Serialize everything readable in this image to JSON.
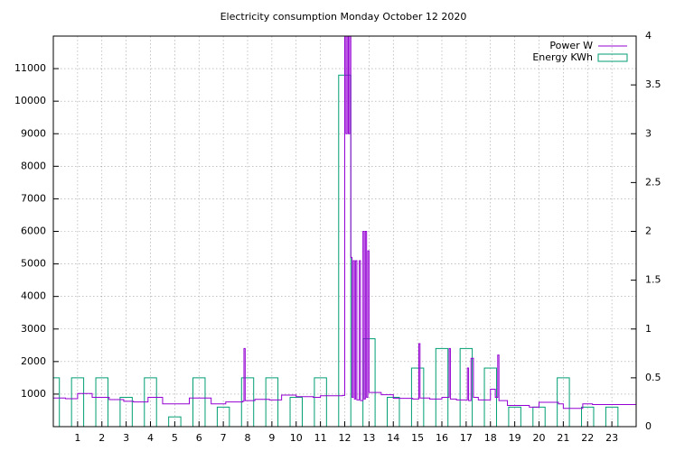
{
  "chart_data": {
    "type": "line",
    "title": "Electricity consumption Monday October 12 2020",
    "xlim": [
      0,
      24
    ],
    "xticks": [
      1,
      2,
      3,
      4,
      5,
      6,
      7,
      8,
      9,
      10,
      11,
      12,
      13,
      14,
      15,
      16,
      17,
      18,
      19,
      20,
      21,
      22,
      23
    ],
    "ylim": [
      0,
      12000
    ],
    "yticks": [
      1000,
      2000,
      3000,
      4000,
      5000,
      6000,
      7000,
      8000,
      9000,
      10000,
      11000
    ],
    "y2lim": [
      0,
      4
    ],
    "y2ticks": [
      0,
      0.5,
      1,
      1.5,
      2,
      2.5,
      3,
      3.5,
      4
    ],
    "grid": true,
    "legend": "top-right",
    "series": [
      {
        "name": "Power W",
        "color": "#9400d3",
        "style": "steps",
        "x": [
          0,
          0.5,
          1,
          1.6,
          2.3,
          2.9,
          3.3,
          3.9,
          4.5,
          5.6,
          6.5,
          7.1,
          7.8,
          7.85,
          7.9,
          8.3,
          8.9,
          9.4,
          10,
          10.7,
          11,
          11.9,
          12.0,
          12.05,
          12.1,
          12.15,
          12.2,
          12.25,
          12.3,
          12.35,
          12.4,
          12.45,
          12.5,
          12.6,
          12.65,
          12.75,
          12.8,
          12.85,
          12.9,
          12.95,
          13.0,
          13.5,
          14.0,
          14.8,
          15.05,
          15.1,
          15.5,
          16.0,
          16.3,
          16.35,
          16.6,
          17.0,
          17.05,
          17.1,
          17.2,
          17.3,
          17.5,
          18.0,
          18.2,
          18.3,
          18.35,
          18.7,
          19.6,
          20.0,
          20.8,
          21.0,
          21.8,
          22.2,
          24
        ],
        "values": [
          880,
          860,
          1020,
          900,
          830,
          780,
          760,
          900,
          700,
          880,
          700,
          760,
          780,
          2400,
          800,
          840,
          820,
          970,
          920,
          900,
          950,
          960,
          12000,
          9000,
          12000,
          9000,
          12000,
          5200,
          900,
          5100,
          850,
          5100,
          820,
          5100,
          800,
          6000,
          850,
          6000,
          900,
          5400,
          1050,
          980,
          870,
          850,
          2550,
          880,
          850,
          900,
          2400,
          850,
          820,
          820,
          1800,
          800,
          2100,
          900,
          820,
          1150,
          900,
          2200,
          800,
          650,
          600,
          750,
          700,
          560,
          700,
          680,
          680
        ]
      },
      {
        "name": "Energy KWh",
        "color": "#009e73",
        "style": "boxes",
        "axis": "y2",
        "x": [
          0,
          1,
          2,
          3,
          4,
          5,
          6,
          7,
          8,
          9,
          10,
          11,
          12,
          13,
          14,
          15,
          16,
          17,
          18,
          19,
          20,
          21,
          22,
          23
        ],
        "values": [
          0.5,
          0.5,
          0.5,
          0.3,
          0.5,
          0.1,
          0.5,
          0.2,
          0.5,
          0.5,
          0.3,
          0.5,
          3.6,
          0.9,
          0.3,
          0.6,
          0.8,
          0.8,
          0.6,
          0.2,
          0.2,
          0.5,
          0.2,
          0.2
        ]
      }
    ]
  }
}
